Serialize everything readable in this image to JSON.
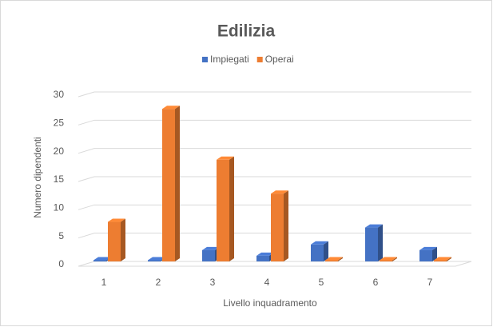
{
  "chart_data": {
    "type": "bar3d",
    "title": "Edilizia",
    "x_label": "Livello inquadramento",
    "y_label": "Numero dipendenti",
    "categories": [
      "1",
      "2",
      "3",
      "4",
      "5",
      "6",
      "7"
    ],
    "series": [
      {
        "name": "Impiegati",
        "color": "#4472c4",
        "values": [
          0,
          0,
          2,
          1,
          3,
          6,
          2
        ]
      },
      {
        "name": "Operai",
        "color": "#ed7d31",
        "values": [
          7,
          27,
          18,
          12,
          0,
          0,
          0
        ]
      }
    ],
    "ylim": [
      0,
      30
    ],
    "yticks": [
      0,
      5,
      10,
      15,
      20,
      25,
      30
    ],
    "grid": true,
    "legend": "top"
  }
}
